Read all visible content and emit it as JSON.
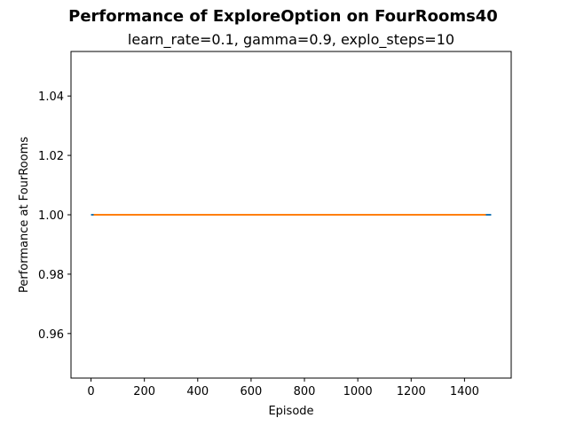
{
  "chart_data": {
    "type": "line",
    "title": "Performance of ExploreOption on FourRooms40",
    "subtitle": "learn_rate=0.1, gamma=0.9, explo_steps=10",
    "xlabel": "Episode",
    "ylabel": "Performance at FourRooms",
    "xlim": [
      -75,
      1575
    ],
    "ylim": [
      0.945,
      1.055
    ],
    "xticks": [
      0,
      200,
      400,
      600,
      800,
      1000,
      1200,
      1400
    ],
    "xtick_labels": [
      "0",
      "200",
      "400",
      "600",
      "800",
      "1000",
      "1200",
      "1400"
    ],
    "yticks": [
      0.96,
      0.98,
      1.0,
      1.02,
      1.04
    ],
    "ytick_labels": [
      "0.96",
      "0.98",
      "1.00",
      "1.02",
      "1.04"
    ],
    "grid": false,
    "legend": false,
    "series": [
      {
        "x": [
          0,
          1500
        ],
        "y": [
          1.0,
          1.0
        ],
        "color": "#1f77b4"
      },
      {
        "x": [
          10,
          1480
        ],
        "y": [
          1.0,
          1.0
        ],
        "color": "#ff7f0e"
      }
    ]
  }
}
